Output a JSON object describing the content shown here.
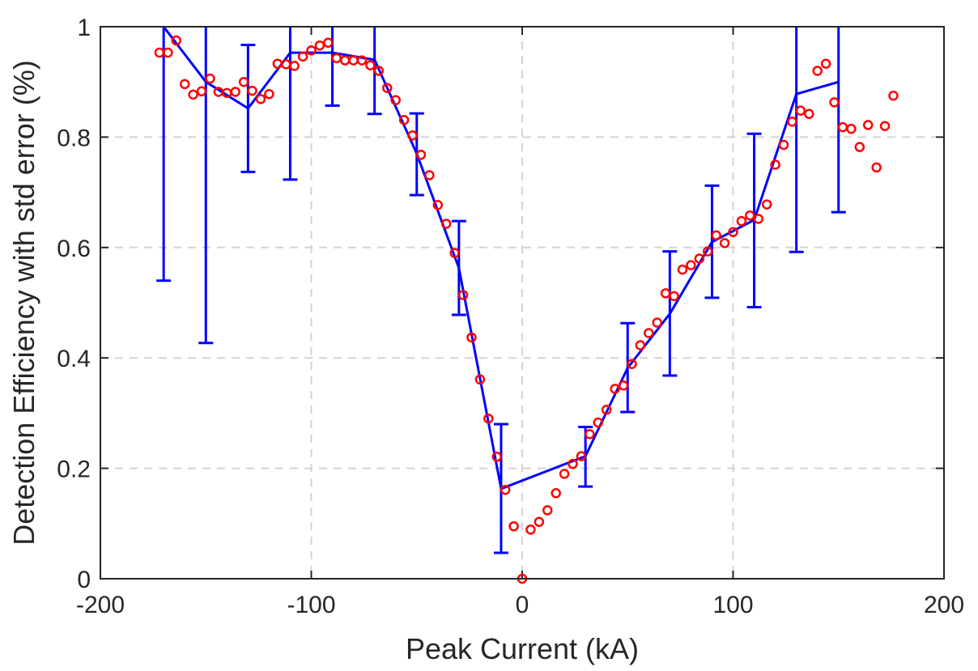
{
  "chart_data": {
    "type": "line",
    "title": "",
    "xlabel": "Peak Current (kA)",
    "ylabel": "Detection Efficiency with std error (%)",
    "xlim": [
      -200,
      200
    ],
    "ylim": [
      0,
      1
    ],
    "xticks": [
      -200,
      -100,
      0,
      100,
      200
    ],
    "yticks": [
      0,
      0.2,
      0.4,
      0.6,
      0.8,
      1
    ],
    "xtick_labels": [
      "-200",
      "-100",
      "0",
      "100",
      "200"
    ],
    "ytick_labels": [
      "0",
      "0.2",
      "0.4",
      "0.6",
      "0.8",
      "1"
    ],
    "grid": true,
    "grid_style": "dashed",
    "series": [
      {
        "kind": "errorbar-line",
        "color": "#0000ff",
        "x": [
          -170,
          -150,
          -130,
          -110,
          -90,
          -70,
          -50,
          -30,
          -10,
          30,
          50,
          70,
          90,
          110,
          130,
          150
        ],
        "y": [
          1.0,
          0.9,
          0.852,
          0.953,
          0.953,
          0.94,
          0.77,
          0.563,
          0.163,
          0.222,
          0.382,
          0.48,
          0.61,
          0.65,
          0.878,
          0.9
        ],
        "lower": [
          0.54,
          0.427,
          0.737,
          0.723,
          0.857,
          0.842,
          0.695,
          0.478,
          0.047,
          0.167,
          0.302,
          0.368,
          0.509,
          0.492,
          0.592,
          0.664
        ],
        "upper": [
          1.0,
          1.0,
          0.967,
          1.0,
          1.0,
          1.0,
          0.843,
          0.648,
          0.28,
          0.275,
          0.463,
          0.593,
          0.712,
          0.806,
          1.0,
          1.0
        ]
      },
      {
        "kind": "scatter",
        "marker": "circle-open",
        "color": "#ff0000",
        "x": [
          -172,
          -168,
          -164,
          -160,
          -156,
          -152,
          -148,
          -144,
          -140,
          -136,
          -132,
          -128,
          -124,
          -120,
          -116,
          -112,
          -108,
          -104,
          -100,
          -96,
          -92,
          -88,
          -84,
          -80,
          -76,
          -72,
          -68,
          -64,
          -60,
          -56,
          -52,
          -48,
          -44,
          -40,
          -36,
          -32,
          -28,
          -24,
          -20,
          -16,
          -12,
          -8,
          -4,
          0,
          4,
          8,
          12,
          16,
          20,
          24,
          28,
          32,
          36,
          40,
          44,
          48,
          52,
          56,
          60,
          64,
          68,
          72,
          76,
          80,
          84,
          88,
          92,
          96,
          100,
          104,
          108,
          112,
          116,
          120,
          124,
          128,
          132,
          136,
          140,
          144,
          148,
          152,
          156,
          160,
          164,
          168,
          172,
          176
        ],
        "y": [
          0.953,
          0.953,
          0.975,
          0.896,
          0.877,
          0.883,
          0.906,
          0.882,
          0.88,
          0.882,
          0.9,
          0.884,
          0.869,
          0.878,
          0.933,
          0.932,
          0.929,
          0.946,
          0.957,
          0.966,
          0.971,
          0.943,
          0.939,
          0.939,
          0.939,
          0.93,
          0.92,
          0.889,
          0.867,
          0.831,
          0.803,
          0.768,
          0.731,
          0.677,
          0.643,
          0.59,
          0.514,
          0.437,
          0.361,
          0.29,
          0.221,
          0.161,
          0.095,
          0.0,
          0.089,
          0.103,
          0.124,
          0.155,
          0.19,
          0.208,
          0.222,
          0.262,
          0.283,
          0.306,
          0.344,
          0.35,
          0.389,
          0.423,
          0.445,
          0.464,
          0.517,
          0.512,
          0.56,
          0.568,
          0.58,
          0.593,
          0.622,
          0.608,
          0.628,
          0.648,
          0.658,
          0.652,
          0.678,
          0.75,
          0.786,
          0.828,
          0.848,
          0.842,
          0.92,
          0.933,
          0.863,
          0.818,
          0.815,
          0.782,
          0.822,
          0.745,
          0.82,
          0.875
        ]
      }
    ]
  }
}
